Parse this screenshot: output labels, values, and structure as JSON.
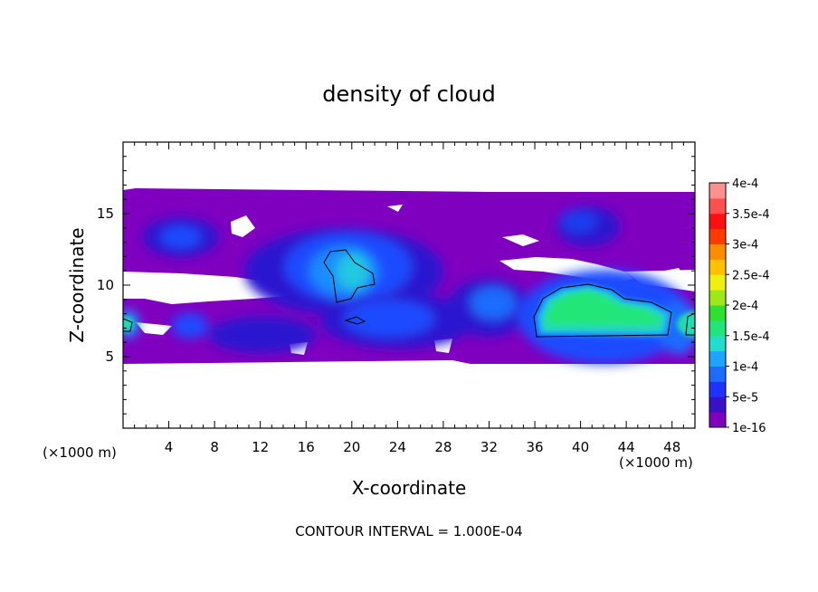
{
  "chart_data": {
    "type": "heatmap",
    "title": "density of cloud",
    "xlabel": "X-coordinate",
    "ylabel": "Z-coordinate",
    "x_unit": "(×1000 m)",
    "z_unit": "(×1000 m)",
    "xlim": [
      0,
      50
    ],
    "zlim": [
      0,
      20
    ],
    "x_ticks": [
      4,
      8,
      12,
      16,
      20,
      24,
      28,
      32,
      36,
      40,
      44,
      48
    ],
    "z_ticks": [
      5,
      10,
      15
    ],
    "colorbar": {
      "labels": [
        "1e-16",
        "5e-5",
        "1e-4",
        "1.5e-4",
        "2e-4",
        "2.5e-4",
        "3e-4",
        "3.5e-4",
        "4e-4"
      ],
      "values": [
        1e-16,
        5e-05,
        0.0001,
        0.00015,
        0.0002,
        0.00025,
        0.0003,
        0.00035,
        0.0004
      ],
      "colors": [
        "#8000c0",
        "#3a0fc8",
        "#1e32ff",
        "#1e6cff",
        "#1ea4ff",
        "#22dccc",
        "#20e67a",
        "#30e030",
        "#9ce818",
        "#f0f010",
        "#ffc000",
        "#ff8c00",
        "#ff3c00",
        "#ff1010",
        "#ff5050",
        "#ff9090"
      ]
    },
    "contour_interval": "CONTOUR INTERVAL = 1.000E-04",
    "cloud_band_z": [
      4.6,
      16.5
    ],
    "max_core": {
      "x_range": [
        36,
        48
      ],
      "z_range": [
        6.3,
        9.8
      ],
      "value_approx": 0.00015
    }
  }
}
